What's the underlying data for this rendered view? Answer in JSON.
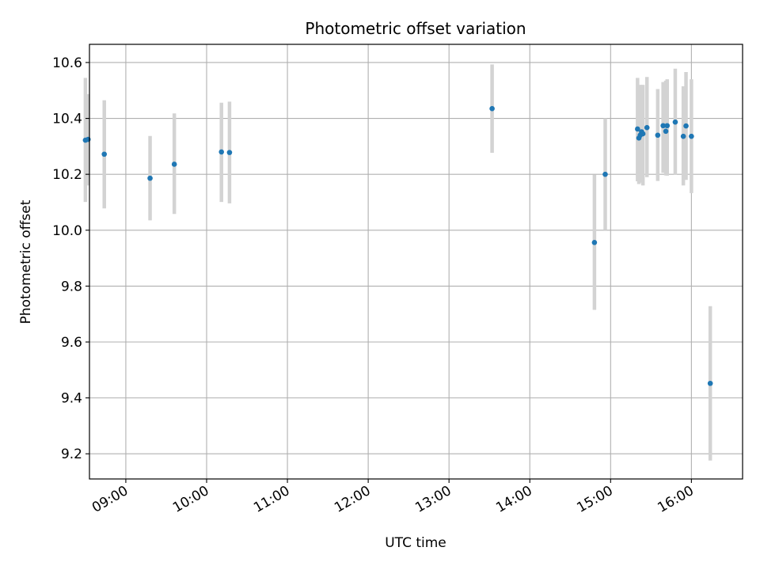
{
  "chart_data": {
    "type": "scatter",
    "title": "Photometric offset variation",
    "xlabel": "UTC time",
    "ylabel": "Photometric offset",
    "xlim": [
      "08:33",
      "16:38"
    ],
    "ylim": [
      9.11,
      10.665
    ],
    "x_ticks": [
      "09:00",
      "10:00",
      "11:00",
      "12:00",
      "13:00",
      "14:00",
      "15:00",
      "16:00"
    ],
    "y_ticks": [
      "9.2",
      "9.4",
      "9.6",
      "9.8",
      "10.0",
      "10.2",
      "10.4",
      "10.6"
    ],
    "grid": true,
    "marker_color": "#1f77b4",
    "errorbar_color": "#d3d3d3",
    "points": [
      {
        "x": "08:30",
        "y": 10.322,
        "ylow": 10.101,
        "yhigh": 10.545
      },
      {
        "x": "08:32",
        "y": 10.325,
        "ylow": 10.16,
        "yhigh": 10.487
      },
      {
        "x": "08:44",
        "y": 10.272,
        "ylow": 10.078,
        "yhigh": 10.465
      },
      {
        "x": "09:18",
        "y": 10.186,
        "ylow": 10.035,
        "yhigh": 10.337
      },
      {
        "x": "09:36",
        "y": 10.236,
        "ylow": 10.058,
        "yhigh": 10.418
      },
      {
        "x": "10:11",
        "y": 10.28,
        "ylow": 10.101,
        "yhigh": 10.456
      },
      {
        "x": "10:17",
        "y": 10.278,
        "ylow": 10.096,
        "yhigh": 10.46
      },
      {
        "x": "13:32",
        "y": 10.435,
        "ylow": 10.277,
        "yhigh": 10.593
      },
      {
        "x": "14:48",
        "y": 9.956,
        "ylow": 9.715,
        "yhigh": 10.199
      },
      {
        "x": "14:56",
        "y": 10.2,
        "ylow": 10.0,
        "yhigh": 10.4
      },
      {
        "x": "15:20",
        "y": 10.362,
        "ylow": 10.175,
        "yhigh": 10.545
      },
      {
        "x": "15:21",
        "y": 10.33,
        "ylow": 10.165,
        "yhigh": 10.495
      },
      {
        "x": "15:22",
        "y": 10.34,
        "ylow": 10.18,
        "yhigh": 10.52
      },
      {
        "x": "15:23",
        "y": 10.352,
        "ylow": 10.17,
        "yhigh": 10.52
      },
      {
        "x": "15:24",
        "y": 10.345,
        "ylow": 10.16,
        "yhigh": 10.52
      },
      {
        "x": "15:27",
        "y": 10.367,
        "ylow": 10.19,
        "yhigh": 10.548
      },
      {
        "x": "15:35",
        "y": 10.34,
        "ylow": 10.176,
        "yhigh": 10.505
      },
      {
        "x": "15:39",
        "y": 10.374,
        "ylow": 10.205,
        "yhigh": 10.53
      },
      {
        "x": "15:41",
        "y": 10.354,
        "ylow": 10.196,
        "yhigh": 10.535
      },
      {
        "x": "15:42",
        "y": 10.374,
        "ylow": 10.195,
        "yhigh": 10.54
      },
      {
        "x": "15:48",
        "y": 10.387,
        "ylow": 10.198,
        "yhigh": 10.578
      },
      {
        "x": "15:54",
        "y": 10.336,
        "ylow": 10.16,
        "yhigh": 10.515
      },
      {
        "x": "15:56",
        "y": 10.373,
        "ylow": 10.18,
        "yhigh": 10.566
      },
      {
        "x": "16:00",
        "y": 10.336,
        "ylow": 10.133,
        "yhigh": 10.54
      },
      {
        "x": "16:14",
        "y": 9.452,
        "ylow": 9.176,
        "yhigh": 9.728
      }
    ]
  }
}
